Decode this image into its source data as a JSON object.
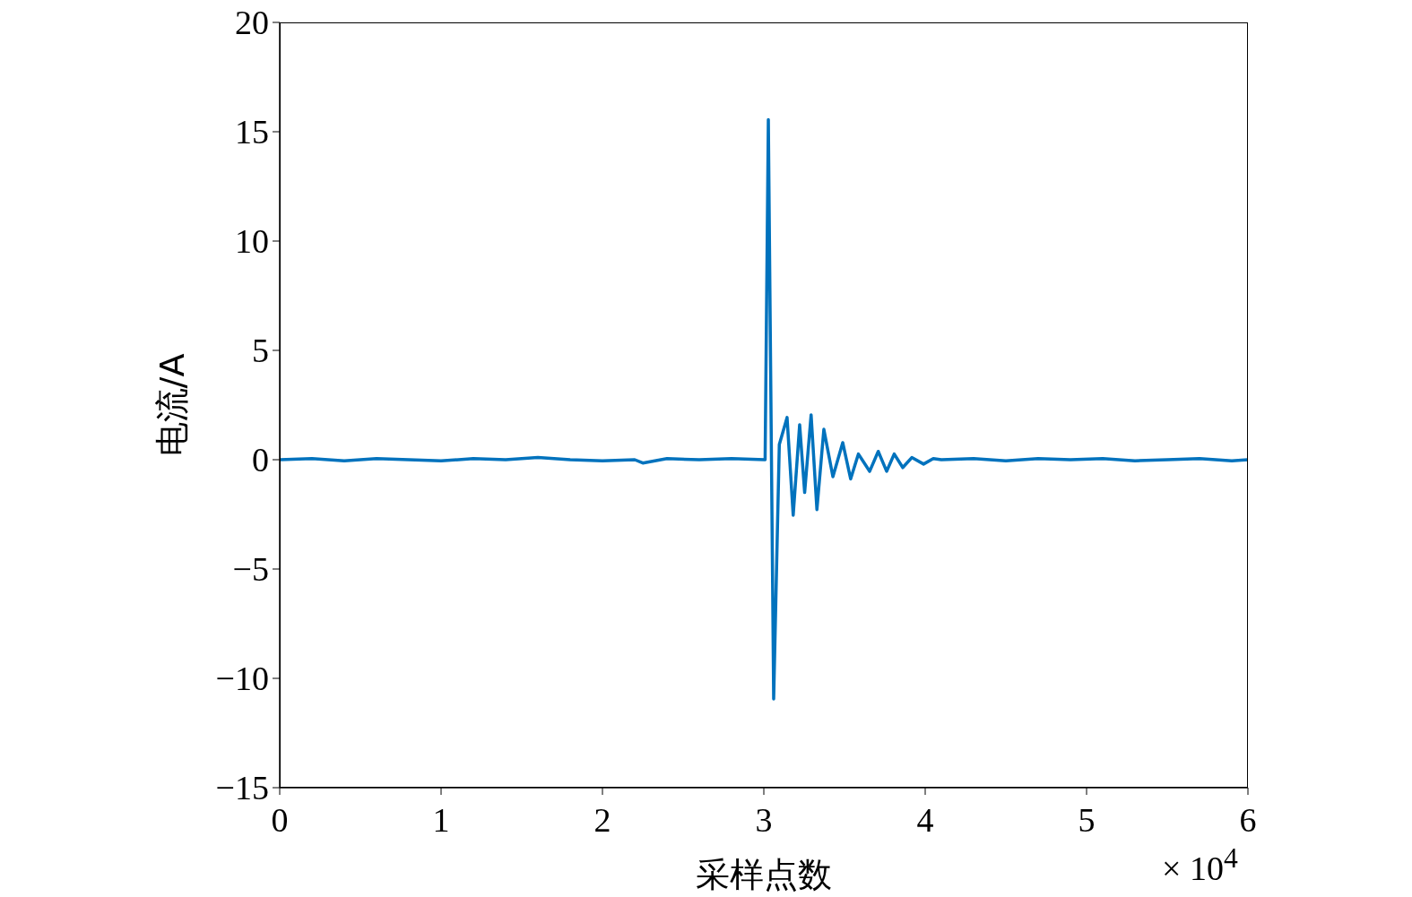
{
  "chart_data": {
    "type": "line",
    "xlabel": "采样点数",
    "ylabel": "电流/A",
    "annotations": [
      "× 10$^{4}$"
    ],
    "xlim": [
      0,
      6
    ],
    "xticks": [
      0,
      1,
      2,
      3,
      4,
      5,
      6
    ],
    "ylim": [
      -15,
      20
    ],
    "yticks": [
      {
        "value": -15,
        "label": "−15"
      },
      {
        "value": -10,
        "label": "−10"
      },
      {
        "value": -5,
        "label": "−5"
      },
      0,
      5,
      10,
      15,
      20
    ],
    "grid": false,
    "marker": "none",
    "line_style": "solid",
    "series": [
      {
        "color": "#0072bd",
        "x": [
          0,
          0.2,
          0.4,
          0.6,
          0.8,
          1,
          1.2,
          1.4,
          1.6,
          1.8,
          2,
          2.2,
          2.25,
          2.4,
          2.6,
          2.8,
          3.008,
          3.028,
          3.061,
          3.096,
          3.144,
          3.182,
          3.222,
          3.253,
          3.293,
          3.329,
          3.372,
          3.428,
          3.489,
          3.538,
          3.586,
          3.656,
          3.709,
          3.761,
          3.808,
          3.861,
          3.917,
          3.99,
          4.05,
          4.1,
          4.3,
          4.5,
          4.7,
          4.9,
          5.1,
          5.3,
          5.5,
          5.7,
          5.9,
          6
        ],
        "values": [
          0,
          0.05,
          -0.05,
          0.05,
          0,
          -0.05,
          0.05,
          0,
          0.1,
          0,
          -0.05,
          0,
          -0.15,
          0.05,
          0,
          0.05,
          0,
          15.55,
          -10.94,
          0.7,
          1.93,
          -2.54,
          1.6,
          -1.5,
          2.05,
          -2.28,
          1.39,
          -0.78,
          0.78,
          -0.88,
          0.26,
          -0.53,
          0.38,
          -0.53,
          0.26,
          -0.36,
          0.1,
          -0.2,
          0.05,
          0,
          0.05,
          -0.05,
          0.05,
          0,
          0.05,
          -0.05,
          0,
          0.05,
          -0.05,
          0
        ]
      }
    ]
  }
}
